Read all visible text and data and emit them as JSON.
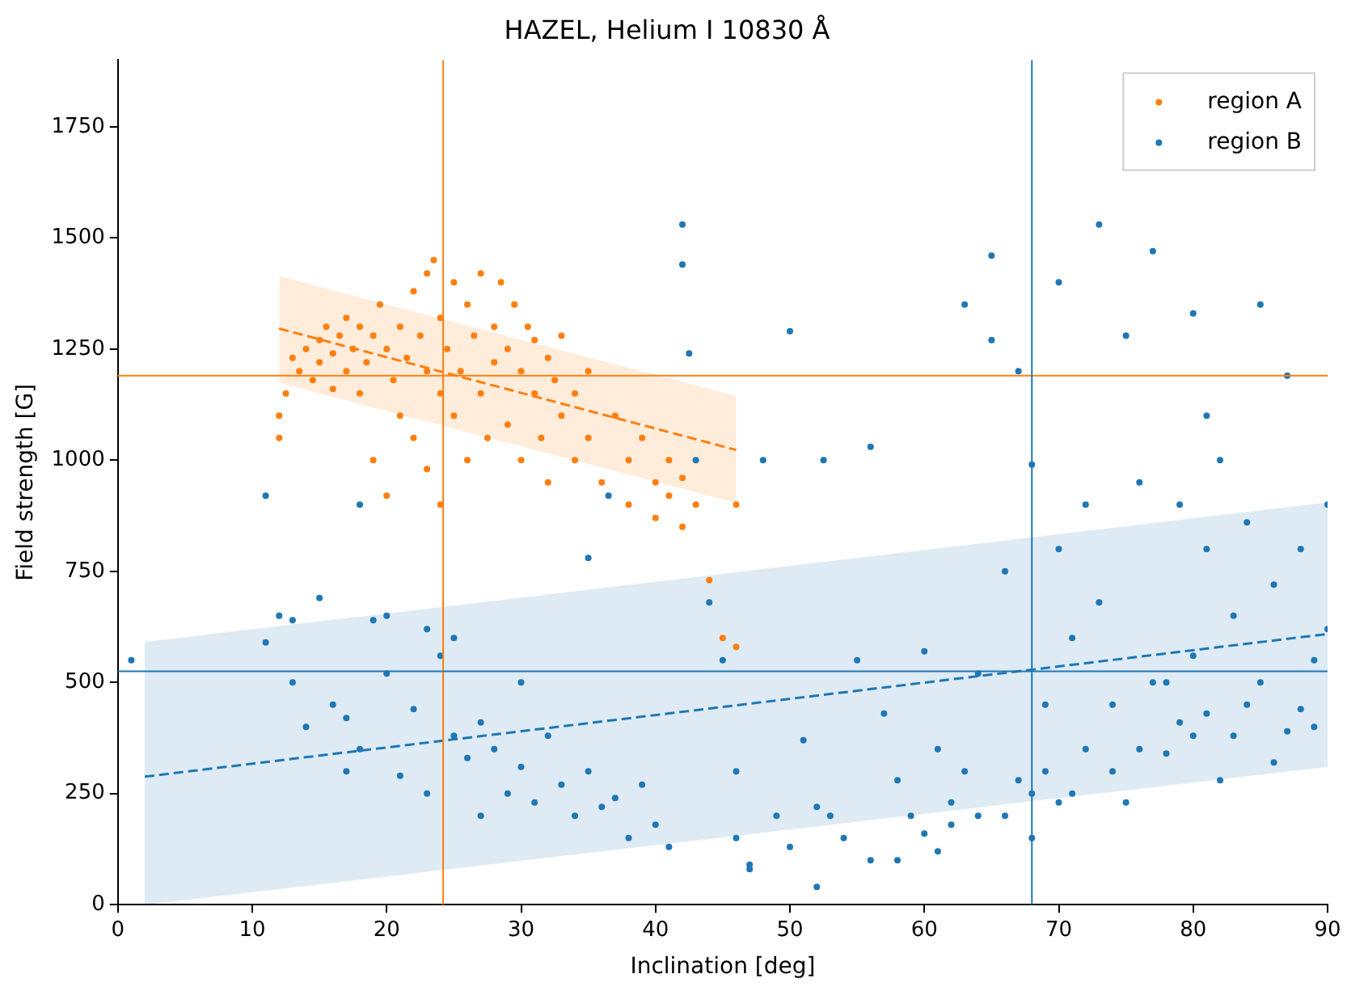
{
  "chart_data": {
    "type": "scatter",
    "title": "HAZEL, Helium I 10830 Å",
    "xlabel": "Inclination [deg]",
    "ylabel": "Field strength [G]",
    "xlim": [
      0,
      90
    ],
    "ylim": [
      0,
      1900
    ],
    "xticks": [
      0,
      10,
      20,
      30,
      40,
      50,
      60,
      70,
      80,
      90
    ],
    "yticks": [
      0,
      250,
      500,
      750,
      1000,
      1250,
      1500,
      1750
    ],
    "grid": false,
    "legend": "top right",
    "marker": "circle",
    "series": [
      {
        "name": "region A",
        "color": "#ff7f0e",
        "x": [
          12,
          12,
          12.5,
          13,
          13.5,
          14,
          14.5,
          15,
          15,
          15.5,
          16,
          16,
          16.5,
          17,
          17,
          17.5,
          18,
          18,
          18.5,
          19,
          19,
          19.5,
          20,
          20,
          20.5,
          21,
          21,
          21.5,
          22,
          22,
          22.5,
          23,
          23,
          23,
          23.5,
          24,
          24,
          24,
          24.5,
          25,
          25,
          25.5,
          26,
          26,
          26.5,
          27,
          27,
          27.5,
          28,
          28,
          28.5,
          29,
          29,
          29.5,
          30,
          30,
          30.5,
          31,
          31,
          31.5,
          32,
          32,
          32.5,
          33,
          33,
          34,
          34,
          35,
          35,
          36,
          37,
          38,
          38,
          39,
          40,
          40,
          41,
          41,
          42,
          42,
          43,
          44,
          45,
          46,
          46
        ],
        "values": [
          1050,
          1100,
          1150,
          1230,
          1200,
          1250,
          1180,
          1270,
          1220,
          1300,
          1240,
          1160,
          1280,
          1200,
          1320,
          1250,
          1150,
          1300,
          1220,
          1280,
          1000,
          1350,
          1250,
          920,
          1180,
          1300,
          1100,
          1230,
          1380,
          1050,
          1280,
          1420,
          1200,
          980,
          1450,
          1320,
          1150,
          900,
          1250,
          1400,
          1100,
          1200,
          1350,
          1000,
          1280,
          1420,
          1150,
          1050,
          1300,
          1220,
          1400,
          1250,
          1080,
          1350,
          1200,
          1000,
          1300,
          1150,
          1270,
          1050,
          1230,
          950,
          1180,
          1280,
          1100,
          1000,
          1150,
          1050,
          1200,
          950,
          1100,
          1000,
          900,
          1050,
          950,
          870,
          1000,
          920,
          960,
          850,
          900,
          730,
          600,
          580,
          900
        ]
      },
      {
        "name": "region B",
        "color": "#1f77b4",
        "x": [
          1,
          11,
          11,
          12,
          13,
          13,
          14,
          15,
          16,
          17,
          17,
          18,
          18,
          19,
          20,
          20,
          21,
          22,
          23,
          23,
          24,
          25,
          25,
          26,
          27,
          27,
          28,
          29,
          30,
          30,
          31,
          32,
          33,
          34,
          35,
          35,
          36,
          37,
          38,
          39,
          40,
          36.5,
          41,
          42,
          42,
          42.5,
          43,
          44,
          45,
          46,
          46,
          47,
          47,
          48,
          49,
          50,
          50,
          51,
          52,
          52,
          52.5,
          53,
          54,
          55,
          56,
          56,
          57,
          58,
          58,
          59,
          60,
          60,
          61,
          61,
          62,
          62,
          63,
          63,
          64,
          64,
          65,
          65,
          66,
          66,
          67,
          67,
          68,
          68,
          68,
          69,
          69,
          70,
          70,
          70,
          71,
          71,
          72,
          72,
          73,
          73,
          74,
          74,
          75,
          75,
          76,
          76,
          77,
          77,
          78,
          78,
          79,
          79,
          80,
          80,
          80,
          81,
          81,
          81,
          82,
          82,
          83,
          83,
          84,
          84,
          85,
          85,
          86,
          86,
          87,
          87,
          88,
          88,
          89,
          89,
          90,
          90
        ],
        "values": [
          550,
          920,
          590,
          650,
          640,
          500,
          400,
          690,
          450,
          420,
          300,
          350,
          900,
          640,
          650,
          520,
          290,
          440,
          620,
          250,
          560,
          600,
          380,
          330,
          410,
          200,
          350,
          250,
          500,
          310,
          230,
          380,
          270,
          200,
          780,
          300,
          220,
          240,
          150,
          270,
          180,
          920,
          130,
          1530,
          1440,
          1240,
          1000,
          680,
          550,
          300,
          150,
          90,
          80,
          1000,
          200,
          1290,
          130,
          370,
          220,
          40,
          1000,
          200,
          150,
          550,
          1030,
          100,
          430,
          280,
          100,
          200,
          570,
          160,
          350,
          120,
          230,
          180,
          1350,
          300,
          520,
          200,
          1460,
          1270,
          750,
          200,
          280,
          1200,
          990,
          150,
          250,
          450,
          300,
          1400,
          800,
          230,
          250,
          600,
          900,
          350,
          1530,
          680,
          300,
          450,
          1280,
          230,
          950,
          350,
          1470,
          500,
          500,
          340,
          900,
          410,
          1330,
          560,
          380,
          1100,
          800,
          430,
          1000,
          280,
          380,
          650,
          860,
          450,
          1350,
          500,
          320,
          720,
          1190,
          390,
          440,
          800,
          550,
          400,
          620,
          900
        ]
      },
      {
        "type": "line",
        "color": "#ff7f0e",
        "line_style": "dashed",
        "marker": "none",
        "x": [
          12,
          46
        ],
        "values": [
          1296,
          1023
        ],
        "lower": [
          1174,
          904
        ],
        "upper": [
          1414,
          1144
        ]
      },
      {
        "type": "line",
        "color": "#1f77b4",
        "line_style": "dashed",
        "marker": "none",
        "x": [
          2,
          90
        ],
        "values": [
          288,
          609
        ],
        "lower": [
          0,
          310
        ],
        "upper": [
          591,
          905
        ]
      }
    ],
    "ref_lines": [
      {
        "axis": "x",
        "value": 24.2,
        "color": "#ff7f0e"
      },
      {
        "axis": "y",
        "value": 1190,
        "color": "#ff7f0e"
      },
      {
        "axis": "x",
        "value": 68,
        "color": "#1f77b4"
      },
      {
        "axis": "y",
        "value": 525,
        "color": "#1f77b4"
      }
    ]
  }
}
